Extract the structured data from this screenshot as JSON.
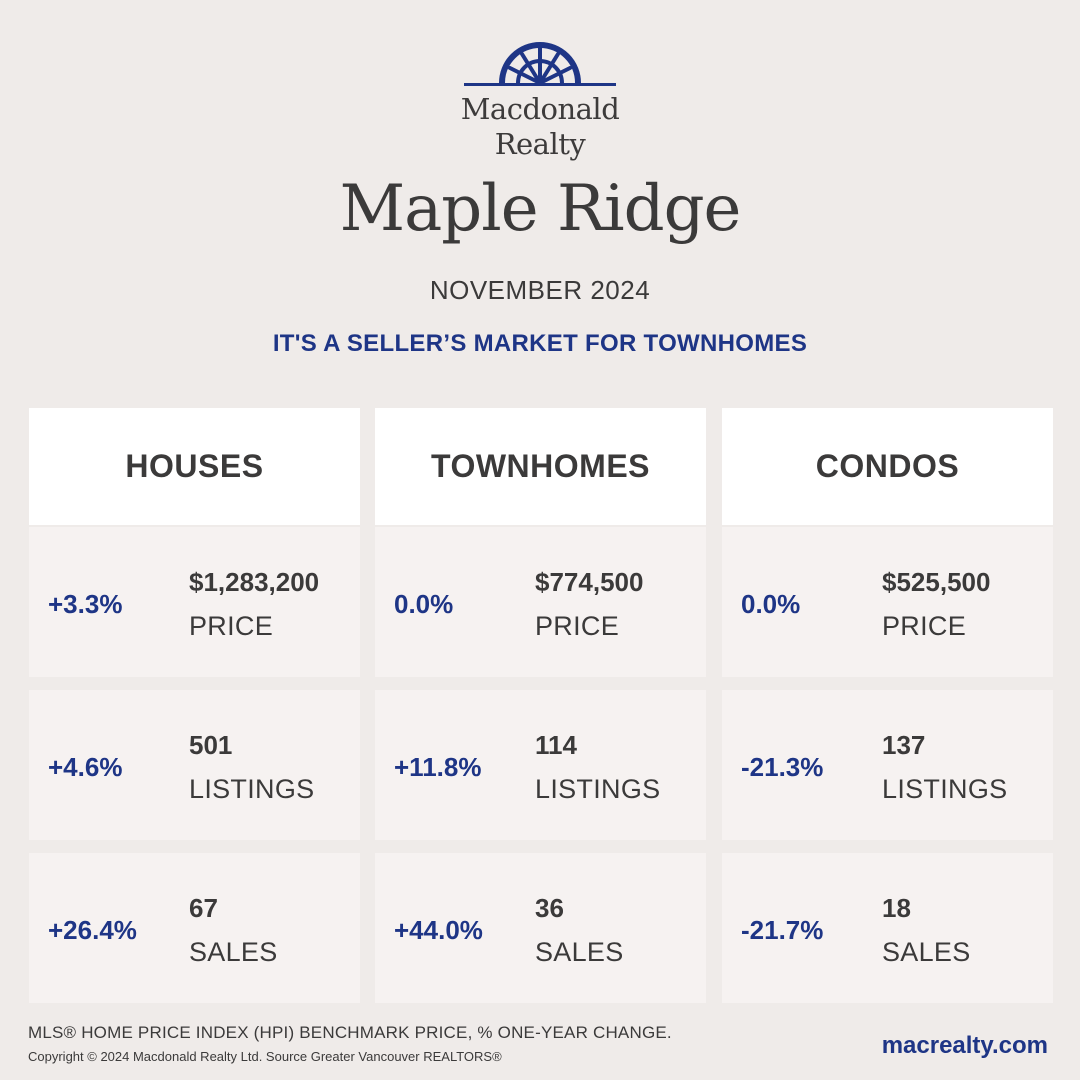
{
  "brand": {
    "logo_line1": "Macdonald",
    "logo_line2": "Realty",
    "accent_color": "#1e3586",
    "logo_icon": "sunburst-arch-icon"
  },
  "city": "Maple Ridge",
  "month": "NOVEMBER 2024",
  "headline": "IT'S A SELLER’S MARKET FOR TOWNHOMES",
  "columns": [
    {
      "title": "HOUSES",
      "rows": [
        {
          "change": "+3.3%",
          "value": "$1,283,200",
          "label": "PRICE"
        },
        {
          "change": "+4.6%",
          "value": "501",
          "label": "LISTINGS"
        },
        {
          "change": "+26.4%",
          "value": "67",
          "label": "SALES"
        }
      ]
    },
    {
      "title": "TOWNHOMES",
      "rows": [
        {
          "change": "0.0%",
          "value": "$774,500",
          "label": "PRICE"
        },
        {
          "change": "+11.8%",
          "value": "114",
          "label": "LISTINGS"
        },
        {
          "change": "+44.0%",
          "value": "36",
          "label": "SALES"
        }
      ]
    },
    {
      "title": "CONDOS",
      "rows": [
        {
          "change": "0.0%",
          "value": "$525,500",
          "label": "PRICE"
        },
        {
          "change": "-21.3%",
          "value": "137",
          "label": "LISTINGS"
        },
        {
          "change": "-21.7%",
          "value": "18",
          "label": "SALES"
        }
      ]
    }
  ],
  "footer": {
    "note": "MLS® HOME PRICE INDEX (HPI) BENCHMARK PRICE, % ONE-YEAR CHANGE.",
    "copyright": "Copyright © 2024 Macdonald Realty Ltd. Source Greater Vancouver REALTORS®",
    "website": "macrealty.com"
  }
}
